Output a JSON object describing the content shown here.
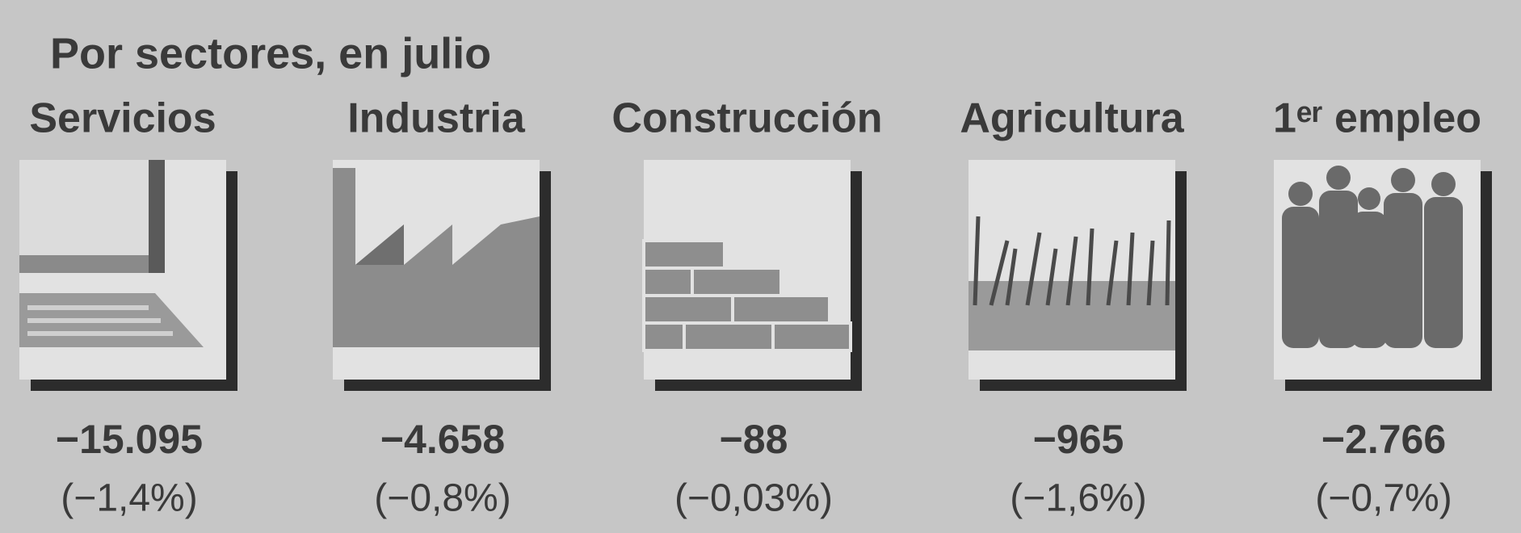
{
  "title": "Por sectores, en julio",
  "sectors": [
    {
      "name": "Servicios",
      "value": "−15.095",
      "percent": "(−1,4%)"
    },
    {
      "name": "Industria",
      "value": "−4.658",
      "percent": "(−0,8%)"
    },
    {
      "name": "Construcción",
      "value": "−88",
      "percent": "(−0,03%)"
    },
    {
      "name": "Agricultura",
      "value": "−965",
      "percent": "(−1,6%)"
    },
    {
      "name": "1ᵉʳ empleo",
      "value": "−2.766",
      "percent": "(−0,7%)"
    }
  ]
}
